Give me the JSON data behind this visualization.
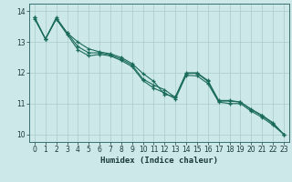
{
  "title": "",
  "xlabel": "Humidex (Indice chaleur)",
  "bg_color": "#cce8e8",
  "grid_color": "#aacccc",
  "line_color": "#1a6b5a",
  "xlim": [
    -0.5,
    23.5
  ],
  "ylim": [
    9.75,
    14.25
  ],
  "xticks": [
    0,
    1,
    2,
    3,
    4,
    5,
    6,
    7,
    8,
    9,
    10,
    11,
    12,
    13,
    14,
    15,
    16,
    17,
    18,
    19,
    20,
    21,
    22,
    23
  ],
  "yticks": [
    10,
    11,
    12,
    13,
    14
  ],
  "line1_x": [
    0,
    1,
    2,
    3,
    4,
    5,
    6,
    7,
    8,
    9,
    10,
    11,
    12,
    13,
    14,
    15,
    16,
    17,
    18,
    19,
    20,
    21,
    22,
    23
  ],
  "line1_y": [
    13.8,
    13.1,
    13.75,
    13.3,
    12.85,
    12.65,
    12.65,
    12.58,
    12.45,
    12.25,
    11.8,
    11.6,
    11.45,
    11.2,
    12.0,
    12.0,
    11.75,
    11.1,
    11.1,
    11.05,
    10.8,
    10.6,
    10.35,
    10.0
  ],
  "line2_x": [
    0,
    1,
    2,
    3,
    4,
    5,
    6,
    7,
    8,
    9,
    10,
    11,
    12,
    13,
    14,
    15,
    16,
    17,
    18,
    19,
    20,
    21,
    22,
    23
  ],
  "line2_y": [
    13.75,
    13.1,
    13.75,
    13.25,
    12.75,
    12.55,
    12.6,
    12.55,
    12.4,
    12.2,
    11.75,
    11.5,
    11.35,
    11.15,
    11.92,
    11.9,
    11.65,
    11.05,
    11.0,
    11.0,
    10.75,
    10.55,
    10.3,
    10.0
  ],
  "line3_x": [
    0,
    1,
    2,
    3,
    4,
    5,
    6,
    7,
    8,
    9,
    10,
    11,
    12,
    13,
    14,
    15,
    16,
    17,
    18,
    19,
    20,
    21,
    22,
    23
  ],
  "line3_y": [
    13.8,
    13.1,
    13.8,
    13.3,
    13.0,
    12.78,
    12.68,
    12.62,
    12.5,
    12.3,
    11.98,
    11.72,
    11.3,
    11.22,
    11.98,
    11.98,
    11.72,
    11.08,
    11.08,
    11.05,
    10.82,
    10.62,
    10.38,
    10.0
  ]
}
